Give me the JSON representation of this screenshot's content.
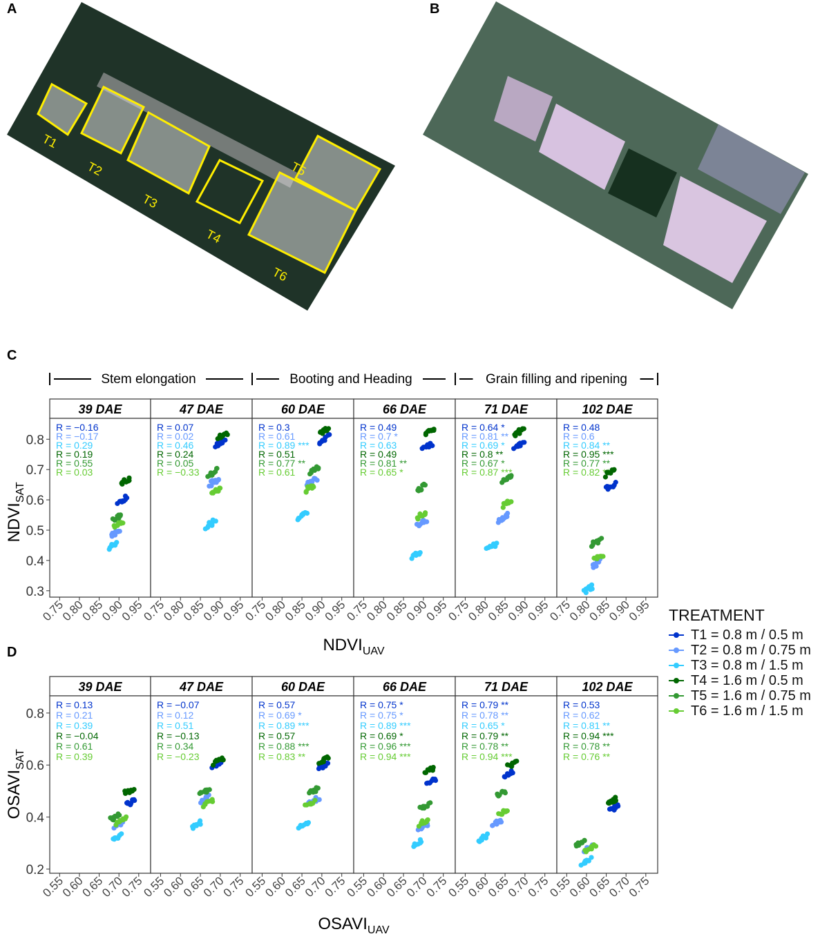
{
  "panel_labels": [
    "A",
    "B",
    "C",
    "D"
  ],
  "image_a": {
    "labels": [
      "T1",
      "T2",
      "T3",
      "T4",
      "T5",
      "T6"
    ],
    "box_color": "#ffee00"
  },
  "phases": [
    "Stem elongation",
    "Booting and Heading",
    "Grain filling and ripening"
  ],
  "legend": {
    "title": "TREATMENT",
    "items": [
      {
        "label": "T1 = 0.8 m / 0.5 m",
        "color": "#0033cc"
      },
      {
        "label": "T2 = 0.8 m / 0.75 m",
        "color": "#6699ff"
      },
      {
        "label": "T3 = 0.8 m / 1.5 m",
        "color": "#33ccff"
      },
      {
        "label": "T4 = 1.6 m / 0.5 m",
        "color": "#006600"
      },
      {
        "label": "T5 = 1.6 m / 0.75 m",
        "color": "#339933"
      },
      {
        "label": "T6 = 1.6 m / 1.5 m",
        "color": "#66cc33"
      }
    ]
  },
  "chart_data": [
    {
      "type": "scatter",
      "xlabel": "NDVI",
      "xlabel_sub": "UAV",
      "ylabel": "NDVI",
      "ylabel_sub": "SAT",
      "xlim": [
        0.725,
        0.98
      ],
      "ylim": [
        0.279,
        0.869
      ],
      "xticks": [
        "0.75",
        "0.80",
        "0.85",
        "0.90",
        "0.95"
      ],
      "yticks": [
        "0.3",
        "0.4",
        "0.5",
        "0.6",
        "0.7",
        "0.8"
      ],
      "panels": [
        {
          "title": "39 DAE",
          "r": [
            "R = −0.16",
            "R = −0.17",
            "R = 0.29",
            "R = 0.19",
            "R = 0.55",
            "R = 0.03"
          ],
          "centers": [
            [
              0.91,
              0.6
            ],
            [
              0.89,
              0.49
            ],
            [
              0.885,
              0.45
            ],
            [
              0.915,
              0.66
            ],
            [
              0.895,
              0.54
            ],
            [
              0.9,
              0.52
            ]
          ]
        },
        {
          "title": "47 DAE",
          "r": [
            "R = 0.07",
            "R = 0.02",
            "R = 0.46",
            "R = 0.24",
            "R = 0.05",
            "R = −0.33"
          ],
          "centers": [
            [
              0.9,
              0.79
            ],
            [
              0.885,
              0.66
            ],
            [
              0.875,
              0.52
            ],
            [
              0.905,
              0.81
            ],
            [
              0.88,
              0.69
            ],
            [
              0.89,
              0.63
            ]
          ]
        },
        {
          "title": "60 DAE",
          "r": [
            "R = 0.3",
            "R = 0.61",
            "R = 0.89 ***",
            "R = 0.51",
            "R = 0.77 **",
            "R = 0.61"
          ],
          "centers": [
            [
              0.905,
              0.8
            ],
            [
              0.875,
              0.66
            ],
            [
              0.85,
              0.55
            ],
            [
              0.905,
              0.825
            ],
            [
              0.88,
              0.7
            ],
            [
              0.87,
              0.64
            ]
          ]
        },
        {
          "title": "66 DAE",
          "r": [
            "R = 0.49",
            "R = 0.7 *",
            "R = 0.63",
            "R = 0.49",
            "R = 0.81 **",
            "R = 0.65 *"
          ],
          "centers": [
            [
              0.91,
              0.775
            ],
            [
              0.895,
              0.525
            ],
            [
              0.88,
              0.42
            ],
            [
              0.915,
              0.825
            ],
            [
              0.895,
              0.64
            ],
            [
              0.895,
              0.55
            ]
          ]
        },
        {
          "title": "71 DAE",
          "r": [
            "R = 0.64 *",
            "R = 0.81 **",
            "R = 0.69 *",
            "R = 0.8 **",
            "R = 0.67 *",
            "R = 0.87 ***"
          ],
          "centers": [
            [
              0.885,
              0.78
            ],
            [
              0.845,
              0.54
            ],
            [
              0.815,
              0.445
            ],
            [
              0.885,
              0.825
            ],
            [
              0.855,
              0.67
            ],
            [
              0.855,
              0.59
            ]
          ]
        },
        {
          "title": "102 DAE",
          "r": [
            "R = 0.48",
            "R = 0.6",
            "R = 0.84 **",
            "R = 0.95 ***",
            "R = 0.77 **",
            "R = 0.82 **"
          ],
          "centers": [
            [
              0.86,
              0.645
            ],
            [
              0.825,
              0.39
            ],
            [
              0.805,
              0.305
            ],
            [
              0.86,
              0.69
            ],
            [
              0.825,
              0.46
            ],
            [
              0.83,
              0.41
            ]
          ]
        }
      ]
    },
    {
      "type": "scatter",
      "xlabel": "OSAVI",
      "xlabel_sub": "UAV",
      "ylabel": "OSAVI",
      "ylabel_sub": "SAT",
      "xlim": [
        0.525,
        0.78
      ],
      "ylim": [
        0.184,
        0.866
      ],
      "xticks": [
        "0.55",
        "0.60",
        "0.65",
        "0.70",
        "0.75"
      ],
      "yticks": [
        "0.2",
        "0.4",
        "0.6",
        "0.8"
      ],
      "panels": [
        {
          "title": "39 DAE",
          "r": [
            "R = 0.13",
            "R = 0.21",
            "R = 0.39",
            "R = −0.04",
            "R = 0.61",
            "R = 0.39"
          ],
          "centers": [
            [
              0.73,
              0.455
            ],
            [
              0.7,
              0.37
            ],
            [
              0.695,
              0.32
            ],
            [
              0.725,
              0.5
            ],
            [
              0.69,
              0.4
            ],
            [
              0.705,
              0.385
            ]
          ]
        },
        {
          "title": "47 DAE",
          "r": [
            "R = −0.07",
            "R = 0.12",
            "R = 0.51",
            "R = −0.13",
            "R = 0.34",
            "R = −0.23"
          ],
          "centers": [
            [
              0.69,
              0.6
            ],
            [
              0.66,
              0.47
            ],
            [
              0.64,
              0.37
            ],
            [
              0.695,
              0.615
            ],
            [
              0.66,
              0.495
            ],
            [
              0.67,
              0.455
            ]
          ]
        },
        {
          "title": "60 DAE",
          "r": [
            "R = 0.57",
            "R = 0.69 *",
            "R = 0.89 ***",
            "R = 0.57",
            "R = 0.88 ***",
            "R = 0.83 **"
          ],
          "centers": [
            [
              0.705,
              0.6
            ],
            [
              0.68,
              0.465
            ],
            [
              0.655,
              0.37
            ],
            [
              0.705,
              0.62
            ],
            [
              0.68,
              0.5
            ],
            [
              0.67,
              0.45
            ]
          ]
        },
        {
          "title": "66 DAE",
          "r": [
            "R = 0.75 *",
            "R = 0.75 *",
            "R = 0.89 ***",
            "R = 0.69 *",
            "R = 0.96 ***",
            "R = 0.94 ***"
          ],
          "centers": [
            [
              0.72,
              0.54
            ],
            [
              0.7,
              0.36
            ],
            [
              0.685,
              0.3
            ],
            [
              0.715,
              0.58
            ],
            [
              0.705,
              0.44
            ],
            [
              0.7,
              0.38
            ]
          ]
        },
        {
          "title": "71 DAE",
          "r": [
            "R = 0.79 **",
            "R = 0.78 **",
            "R = 0.65 *",
            "R = 0.79 **",
            "R = 0.78 **",
            "R = 0.94 ***"
          ],
          "centers": [
            [
              0.66,
              0.565
            ],
            [
              0.63,
              0.38
            ],
            [
              0.595,
              0.32
            ],
            [
              0.67,
              0.605
            ],
            [
              0.64,
              0.49
            ],
            [
              0.645,
              0.42
            ]
          ]
        },
        {
          "title": "102 DAE",
          "r": [
            "R = 0.53",
            "R = 0.62",
            "R = 0.81 **",
            "R = 0.94 ***",
            "R = 0.78 **",
            "R = 0.76 **"
          ],
          "centers": [
            [
              0.67,
              0.435
            ],
            [
              0.605,
              0.28
            ],
            [
              0.6,
              0.23
            ],
            [
              0.665,
              0.46
            ],
            [
              0.585,
              0.3
            ],
            [
              0.61,
              0.28
            ]
          ]
        }
      ]
    }
  ]
}
